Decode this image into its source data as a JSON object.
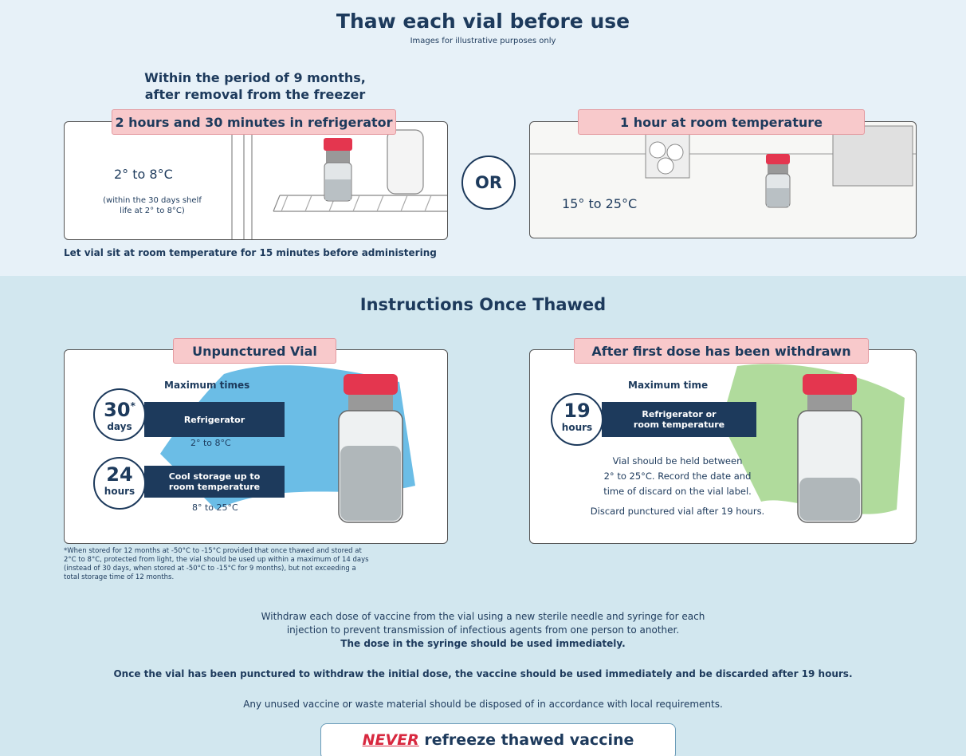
{
  "top": {
    "title": "Thaw each vial before use",
    "subtitle": "Images for illustrative purposes only",
    "intro": [
      "Within the period of 9 months,",
      "after removal from the freezer"
    ],
    "left": {
      "label": "2 hours and 30 minutes in refrigerator",
      "temp": "2° to 8°C",
      "note": [
        "(within the 30 days shelf",
        "life at 2° to 8°C)"
      ]
    },
    "or": "OR",
    "right": {
      "label": "1 hour at room temperature",
      "temp": "15° to 25°C"
    },
    "note": "Let vial sit at room temperature for 15 minutes before administering"
  },
  "thawed": {
    "title": "Instructions Once Thawed",
    "left": {
      "label": "Unpunctured Vial",
      "heading": "Maximum times",
      "rows": [
        {
          "number": "30",
          "mark": "*",
          "unit": "days",
          "label": [
            "Refrigerator"
          ],
          "range": "2° to 8°C"
        },
        {
          "number": "24",
          "unit": "hours",
          "label": [
            "Cool storage up to",
            "room temperature"
          ],
          "range": "8° to 25°C"
        }
      ]
    },
    "right": {
      "label": "After first dose has been withdrawn",
      "heading": "Maximum time",
      "number": "19",
      "unit": "hours",
      "bar": [
        "Refrigerator or",
        "room temperature"
      ],
      "body": [
        "Vial should be held between",
        "2° to 25°C. Record the date and",
        "time of discard on the vial label."
      ],
      "discard": "Discard punctured vial after 19 hours."
    },
    "footnote": [
      "*When stored for 12 months at -50°C to -15°C provided that once thawed and stored at",
      "2°C to 8°C, protected from light, the vial should be used up within a maximum of 14 days",
      "(instead of 30 days, when stored at -50°C to -15°C for 9 months), but not exceeding a",
      "total storage time of 12 months."
    ],
    "paragraph": [
      "Withdraw each dose of vaccine from the vial using a new sterile needle and syringe for each",
      "injection to prevent transmission of infectious agents from one person to another.",
      "The dose in the syringe should be used immediately."
    ],
    "punctured": "Once the vial has been punctured to withdraw the initial dose, the vaccine should be used immediately and be discarded after 19 hours.",
    "disposal": "Any unused vaccine or waste material should be disposed of in accordance with local requirements.",
    "never": {
      "emphasis": "NEVER",
      "rest": " refreeze thawed vaccine"
    }
  }
}
